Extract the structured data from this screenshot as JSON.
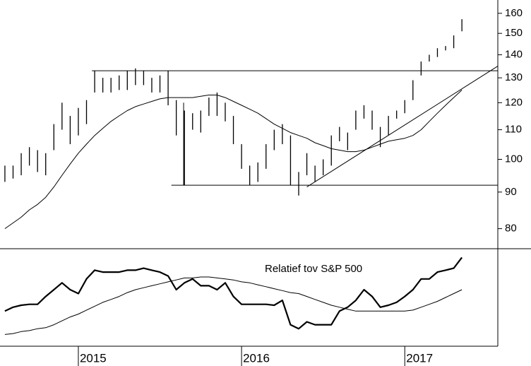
{
  "chart_data": [
    {
      "type": "hilo",
      "color": "#000000",
      "log_scale": true,
      "xlim": [
        2014.52,
        2017.57
      ],
      "ylim": [
        75,
        167
      ],
      "yticks": [
        80,
        90,
        100,
        110,
        120,
        130,
        140,
        150,
        160
      ],
      "x": [
        2014.55,
        2014.6,
        2014.65,
        2014.7,
        2014.75,
        2014.8,
        2014.85,
        2014.9,
        2014.95,
        2015.0,
        2015.05,
        2015.1,
        2015.15,
        2015.2,
        2015.25,
        2015.3,
        2015.35,
        2015.4,
        2015.45,
        2015.5,
        2015.55,
        2015.6,
        2015.65,
        2015.7,
        2015.75,
        2015.8,
        2015.85,
        2015.9,
        2015.95,
        2016.0,
        2016.05,
        2016.1,
        2016.15,
        2016.2,
        2016.25,
        2016.3,
        2016.35,
        2016.4,
        2016.45,
        2016.5,
        2016.55,
        2016.6,
        2016.65,
        2016.7,
        2016.75,
        2016.8,
        2016.85,
        2016.9,
        2016.95,
        2017.0,
        2017.05,
        2017.1,
        2017.15,
        2017.2,
        2017.25,
        2017.3,
        2017.35
      ],
      "high": [
        98,
        98,
        102,
        104,
        103,
        102,
        112,
        120,
        115,
        118,
        121,
        133,
        130,
        130,
        131,
        133,
        134,
        133,
        130,
        131,
        133,
        121,
        117,
        116,
        117,
        122,
        124,
        120,
        115,
        105,
        98,
        99,
        105,
        110,
        112,
        108,
        96,
        102,
        98,
        100,
        108,
        111,
        109,
        117,
        119,
        117,
        111,
        115,
        117,
        121,
        129,
        137,
        140,
        143,
        144,
        149,
        157
      ],
      "low": [
        93,
        94,
        95,
        98,
        96,
        95,
        103,
        110,
        105,
        108,
        112,
        124,
        124,
        124,
        125,
        125,
        127,
        127,
        124,
        124,
        119,
        108,
        92,
        110,
        109,
        115,
        115,
        113,
        105,
        97,
        92,
        93,
        97,
        103,
        105,
        92,
        89,
        95,
        93,
        95,
        98,
        106,
        103,
        110,
        114,
        110,
        104,
        108,
        114,
        116,
        121,
        131,
        137,
        139,
        142,
        143,
        151
      ],
      "moving_average": [
        80,
        81.5,
        83,
        85,
        86.5,
        88.5,
        91.5,
        95,
        98.5,
        102,
        105,
        108,
        110.5,
        113,
        115,
        117,
        118.5,
        119.5,
        120.5,
        121.5,
        122,
        122,
        122,
        122,
        122.5,
        123,
        123,
        122,
        120.5,
        119,
        117.5,
        116,
        114,
        112,
        110.5,
        109,
        108,
        107,
        105.5,
        104.5,
        103.5,
        103,
        102.5,
        102.5,
        103,
        104,
        105,
        106,
        106.5,
        107,
        108,
        110,
        113,
        116,
        119,
        122,
        125
      ],
      "lines": [
        {
          "x": [
            2015.083,
            2017.57
          ],
          "y": [
            133,
            133
          ]
        },
        {
          "x": [
            2015.57,
            2017.57
          ],
          "y": [
            92,
            92
          ]
        },
        {
          "x": [
            2015.645,
            2015.645
          ],
          "y": [
            92,
            120
          ]
        },
        {
          "x": [
            2016.4,
            2017.57
          ],
          "y": [
            91.5,
            135
          ]
        }
      ]
    },
    {
      "type": "line",
      "annotation": "Relatief tov S&P 500",
      "xlim": [
        2014.52,
        2017.57
      ],
      "ylim": [
        0,
        100
      ],
      "xticks": [
        2015,
        2016,
        2017
      ],
      "x": [
        2014.55,
        2014.6,
        2014.65,
        2014.7,
        2014.75,
        2014.8,
        2014.85,
        2014.9,
        2014.95,
        2015.0,
        2015.05,
        2015.1,
        2015.15,
        2015.2,
        2015.25,
        2015.3,
        2015.35,
        2015.4,
        2015.45,
        2015.5,
        2015.55,
        2015.6,
        2015.65,
        2015.7,
        2015.75,
        2015.8,
        2015.85,
        2015.9,
        2015.95,
        2016.0,
        2016.05,
        2016.1,
        2016.15,
        2016.2,
        2016.25,
        2016.3,
        2016.35,
        2016.4,
        2016.45,
        2016.5,
        2016.55,
        2016.6,
        2016.65,
        2016.7,
        2016.75,
        2016.8,
        2016.85,
        2016.9,
        2016.95,
        2017.0,
        2017.05,
        2017.1,
        2017.15,
        2017.2,
        2017.25,
        2017.3,
        2017.35
      ],
      "series": [
        {
          "color": "#000000",
          "values": [
            36,
            40,
            42,
            43,
            43,
            51,
            58,
            65,
            58,
            54,
            69,
            78,
            76,
            76,
            76,
            78,
            78,
            80,
            78,
            76,
            72,
            58,
            65,
            69,
            62,
            62,
            58,
            65,
            51,
            43,
            43,
            43,
            43,
            42,
            47,
            22,
            18,
            25,
            22,
            22,
            22,
            36,
            40,
            47,
            58,
            51,
            40,
            42,
            45,
            51,
            58,
            69,
            69,
            76,
            78,
            80,
            91
          ]
        },
        {
          "color": "#000000",
          "values": [
            12,
            13,
            15,
            16,
            18,
            19,
            22,
            26,
            30,
            33,
            37,
            41,
            45,
            48,
            51,
            55,
            58,
            60,
            62,
            64,
            66,
            68,
            70,
            70,
            71,
            71,
            70,
            69,
            68,
            66,
            65,
            63,
            61,
            59,
            57,
            55,
            54,
            51,
            48,
            45,
            42,
            40,
            38,
            36,
            36,
            36,
            36,
            36,
            36,
            36,
            37,
            40,
            43,
            46,
            50,
            54,
            58
          ]
        }
      ]
    }
  ]
}
